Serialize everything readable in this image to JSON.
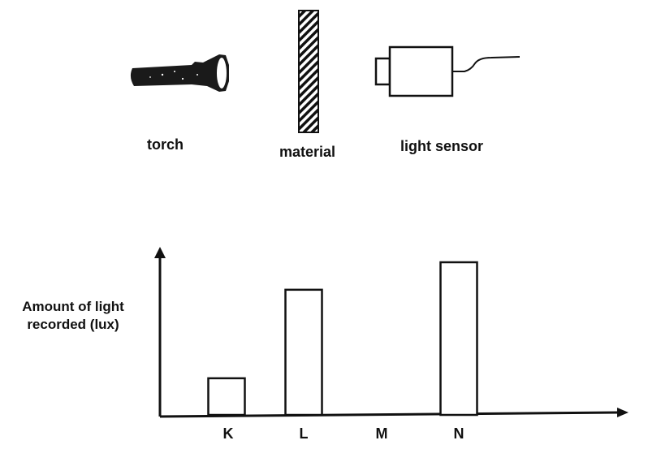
{
  "apparatus": {
    "torch_label": "torch",
    "material_label": "material",
    "sensor_label": "light sensor"
  },
  "chart_data": {
    "type": "bar",
    "categories": [
      "K",
      "L",
      "M",
      "N"
    ],
    "values": [
      24,
      82,
      0,
      100
    ],
    "ylabel_line1": "Amount of light",
    "ylabel_line2": "recorded (lux)",
    "xlabel": "",
    "ylim": [
      0,
      120
    ],
    "grid": false
  }
}
